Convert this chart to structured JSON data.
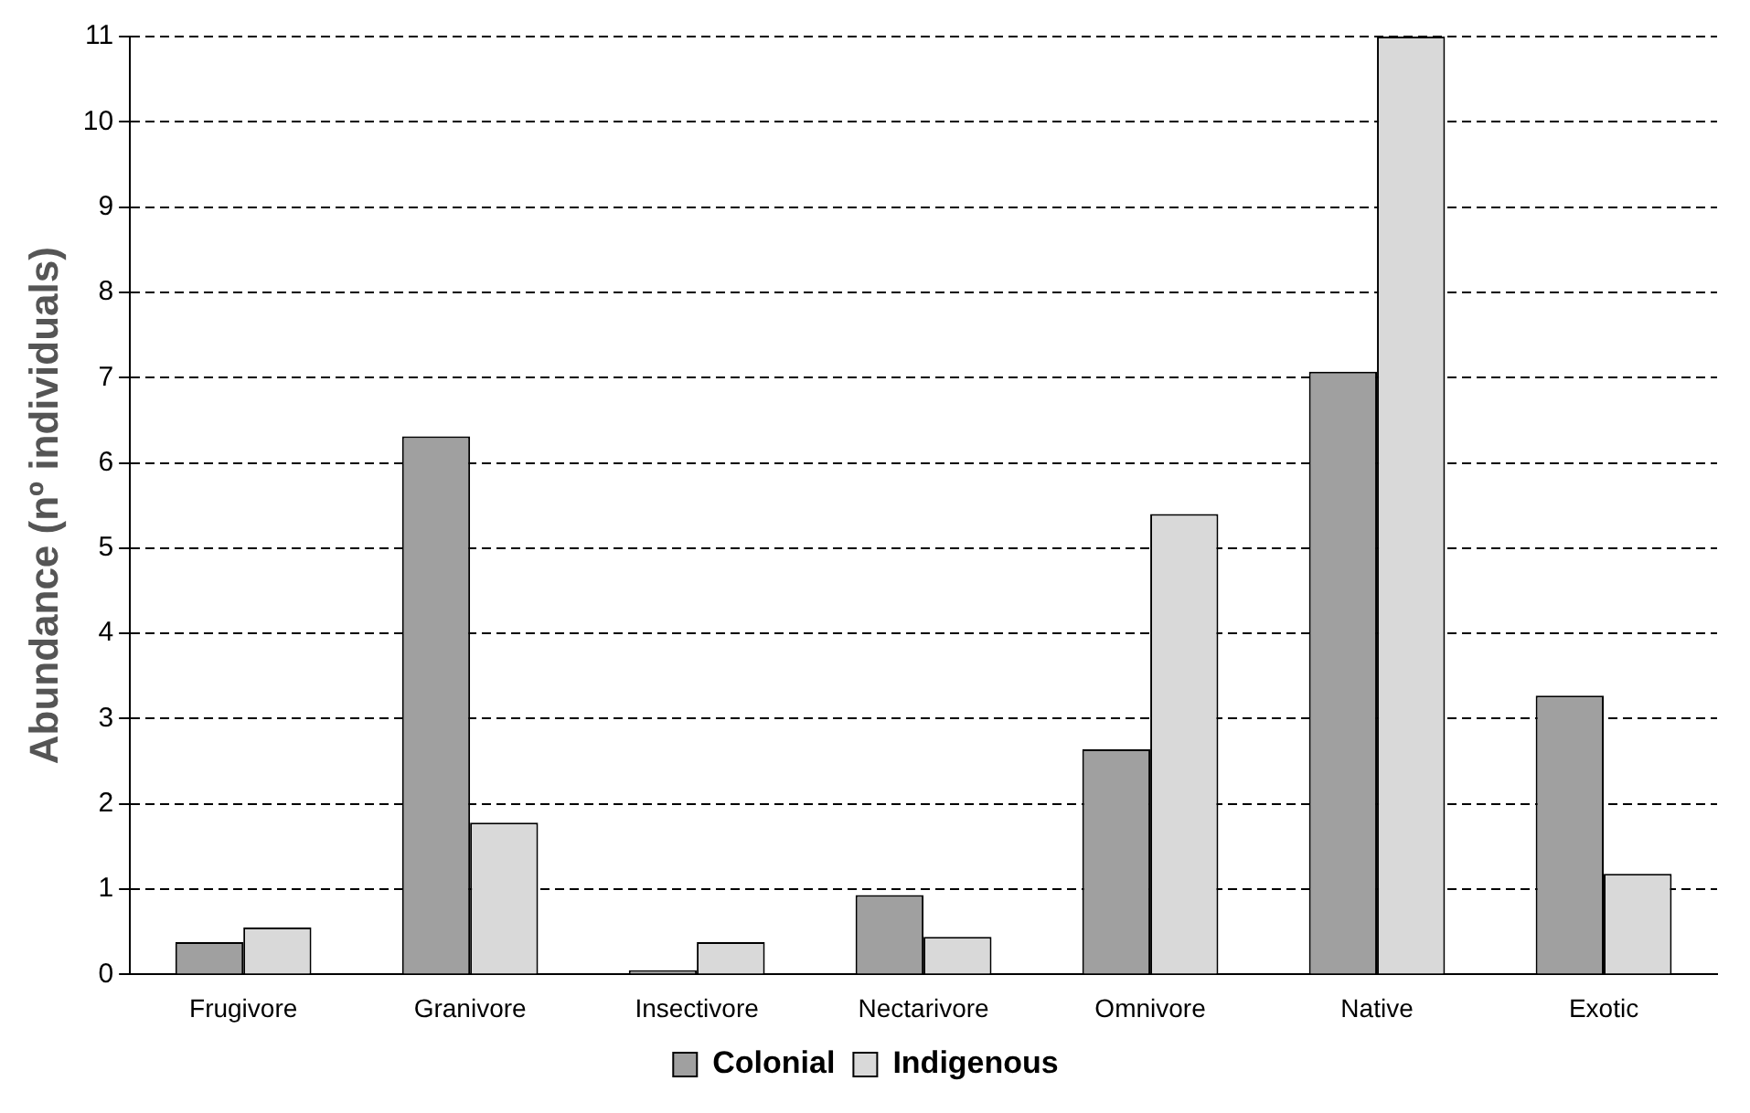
{
  "chart_data": {
    "type": "bar",
    "ylabel": "Abundance (nº individuals)",
    "categories": [
      "Frugivore",
      "Granivore",
      "Insectivore",
      "Nectarivore",
      "Omnivore",
      "Native",
      "Exotic"
    ],
    "series": [
      {
        "name": "Colonial",
        "color": "#a0a0a0",
        "values": [
          0.38,
          6.31,
          0.05,
          0.93,
          2.64,
          7.07,
          3.27
        ]
      },
      {
        "name": "Indigenous",
        "color": "#d9d9d9",
        "values": [
          0.55,
          1.78,
          0.38,
          0.44,
          5.4,
          11,
          1.18
        ]
      }
    ],
    "ylim": [
      0,
      11
    ],
    "yticks": [
      0,
      1,
      2,
      3,
      4,
      5,
      6,
      7,
      8,
      9,
      10,
      11
    ],
    "grid": "y",
    "legend": "bottom"
  }
}
